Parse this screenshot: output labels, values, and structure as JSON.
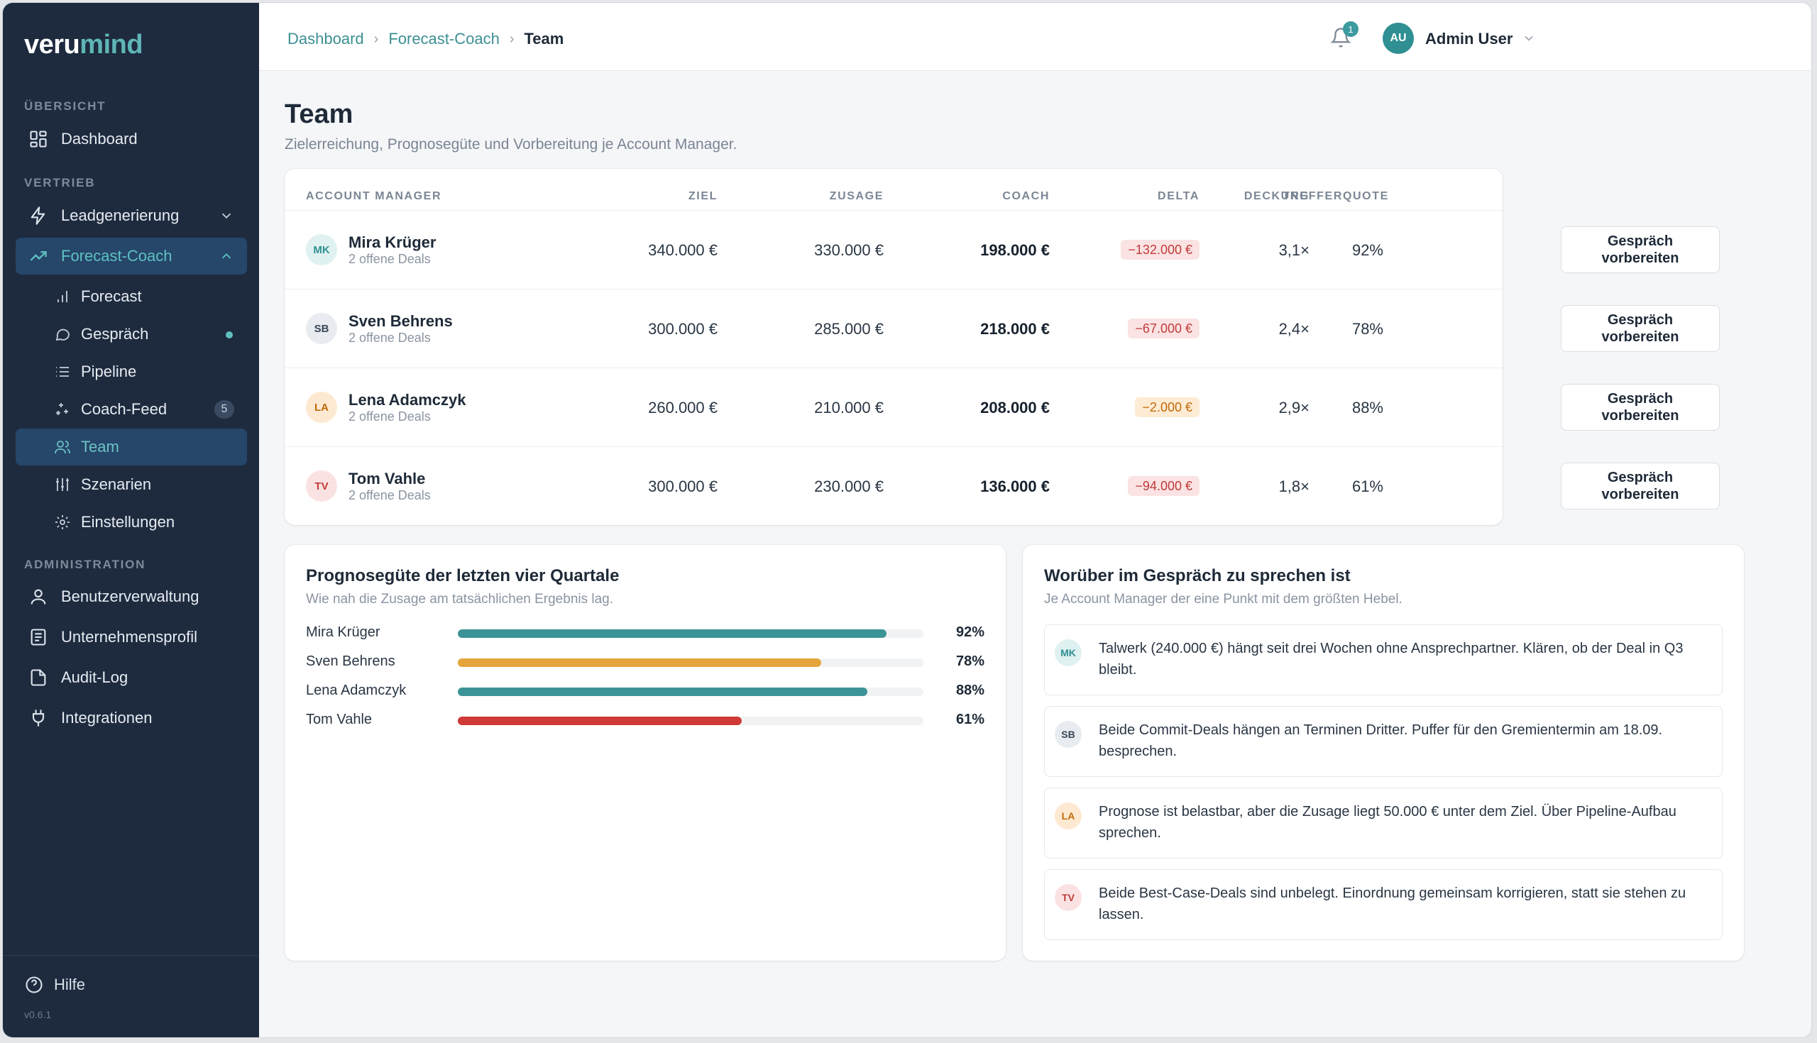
{
  "brand": {
    "part1": "veru",
    "part2": "mind"
  },
  "sidebar": {
    "sections": {
      "overview": "ÜBERSICHT",
      "sales": "VERTRIEB",
      "admin": "ADMINISTRATION"
    },
    "items": {
      "dashboard": "Dashboard",
      "leadgen": "Leadgenerierung",
      "forecast_coach": "Forecast-Coach",
      "forecast": "Forecast",
      "gespraech": "Gespräch",
      "pipeline": "Pipeline",
      "coach_feed": "Coach-Feed",
      "coach_feed_count": "5",
      "team": "Team",
      "szenarien": "Szenarien",
      "einstellungen": "Einstellungen",
      "benutzer": "Benutzerverwaltung",
      "unternehmen": "Unternehmensprofil",
      "audit": "Audit-Log",
      "integrationen": "Integrationen"
    },
    "help": "Hilfe",
    "version": "v0.6.1"
  },
  "header": {
    "breadcrumbs": [
      "Dashboard",
      "Forecast-Coach",
      "Team"
    ],
    "notification_count": "1",
    "user_initials": "AU",
    "user_name": "Admin User"
  },
  "page": {
    "title": "Team",
    "subtitle": "Zielerreichung, Prognosegüte und Vorbereitung je Account Manager."
  },
  "table": {
    "columns": [
      "ACCOUNT MANAGER",
      "ZIEL",
      "ZUSAGE",
      "COACH",
      "DELTA",
      "TREFFERQUOTE",
      "DECKUNG"
    ],
    "button_label": "Gespräch vorbereiten",
    "rows": [
      {
        "initials": "MK",
        "name": "Mira Krüger",
        "deals": "2 offene Deals",
        "ziel": "340.000 €",
        "zusage": "330.000 €",
        "coach": "198.000 €",
        "delta": "−132.000 €",
        "quote": "92%",
        "deckung": "3,1×"
      },
      {
        "initials": "SB",
        "name": "Sven Behrens",
        "deals": "2 offene Deals",
        "ziel": "300.000 €",
        "zusage": "285.000 €",
        "coach": "218.000 €",
        "delta": "−67.000 €",
        "quote": "78%",
        "deckung": "2,4×"
      },
      {
        "initials": "LA",
        "name": "Lena Adamczyk",
        "deals": "2 offene Deals",
        "ziel": "260.000 €",
        "zusage": "210.000 €",
        "coach": "208.000 €",
        "delta": "−2.000 €",
        "quote": "88%",
        "deckung": "2,9×"
      },
      {
        "initials": "TV",
        "name": "Tom Vahle",
        "deals": "2 offene Deals",
        "ziel": "300.000 €",
        "zusage": "230.000 €",
        "coach": "136.000 €",
        "delta": "−94.000 €",
        "quote": "61%",
        "deckung": "1,8×"
      }
    ]
  },
  "quality": {
    "title": "Prognosegüte der letzten vier Quartale",
    "subtitle": "Wie nah die Zusage am tatsächlichen Ergebnis lag.",
    "bars": [
      {
        "name": "Mira Krüger",
        "value": 92,
        "label": "92%",
        "color": "#3c9396"
      },
      {
        "name": "Sven Behrens",
        "value": 78,
        "label": "78%",
        "color": "#e5a43b"
      },
      {
        "name": "Lena Adamczyk",
        "value": 88,
        "label": "88%",
        "color": "#3c9396"
      },
      {
        "name": "Tom Vahle",
        "value": 61,
        "label": "61%",
        "color": "#cf3a36"
      }
    ]
  },
  "talk": {
    "title": "Worüber im Gespräch zu sprechen ist",
    "subtitle": "Je Account Manager der eine Punkt mit dem größten Hebel.",
    "items": [
      {
        "initials": "MK",
        "text": "Talwerk (240.000 €) hängt seit drei Wochen ohne Ansprechpartner. Klären, ob der Deal in Q3 bleibt."
      },
      {
        "initials": "SB",
        "text": "Beide Commit-Deals hängen an Terminen Dritter. Puffer für den Gremientermin am 18.09. besprechen."
      },
      {
        "initials": "LA",
        "text": "Prognose ist belastbar, aber die Zusage liegt 50.000 € unter dem Ziel. Über Pipeline-Aufbau sprechen."
      },
      {
        "initials": "TV",
        "text": "Beide Best-Case-Deals sind unbelegt. Einordnung gemeinsam korrigieren, statt sie stehen zu lassen."
      }
    ]
  }
}
